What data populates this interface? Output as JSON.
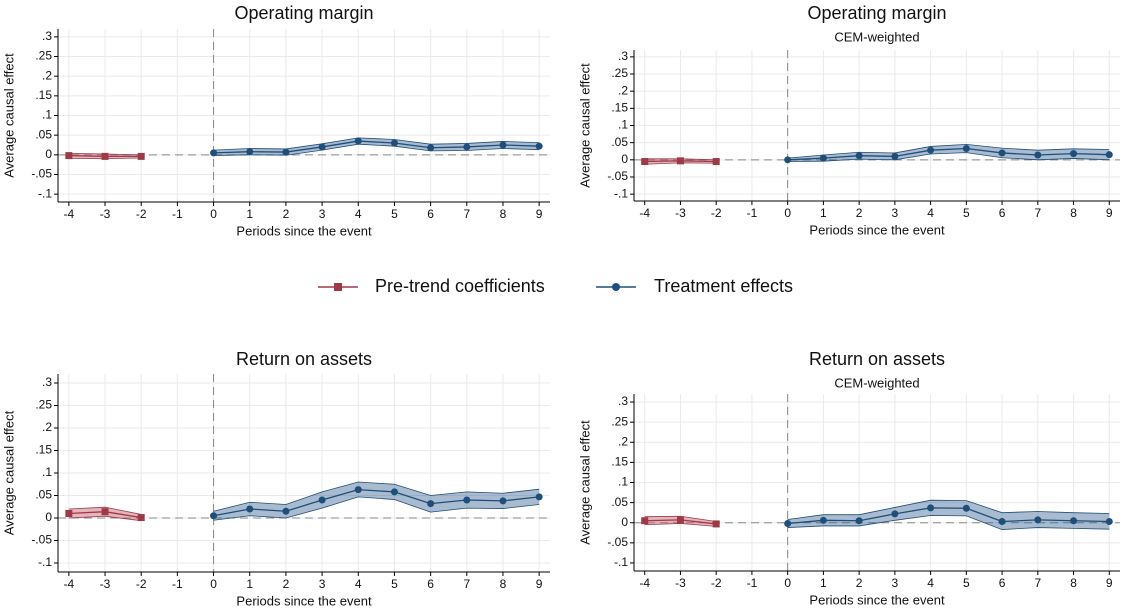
{
  "chart_data": [
    {
      "type": "line",
      "title": "Operating margin",
      "xlabel": "Periods since the event",
      "ylabel": "Average causal effect",
      "x": [
        -4,
        -3,
        -2,
        -1,
        0,
        1,
        2,
        3,
        4,
        5,
        6,
        7,
        8,
        9
      ],
      "xlim": [
        -4.3,
        9.3
      ],
      "xticks": [
        -4,
        -3,
        -2,
        -1,
        0,
        1,
        2,
        3,
        4,
        5,
        6,
        7,
        8,
        9
      ],
      "ylim": [
        -0.12,
        0.32
      ],
      "yticks": [
        {
          "value": -0.1,
          "label": "-.1"
        },
        {
          "value": -0.05,
          "label": "-.05"
        },
        0,
        {
          "value": 0.05,
          "label": ".05"
        },
        {
          "value": 0.1,
          "label": ".1"
        },
        {
          "value": 0.15,
          "label": ".15"
        },
        {
          "value": 0.2,
          "label": ".2"
        },
        {
          "value": 0.25,
          "label": ".25"
        },
        {
          "value": 0.3,
          "label": ".3"
        }
      ],
      "grid": true,
      "series": [
        {
          "name": "Pre-trend coefficients",
          "color": "#9e3a48",
          "band_color": "rgba(196,92,108,0.45)",
          "marker": "square",
          "values": [
            -0.002,
            -0.004,
            -0.004,
            null,
            null,
            null,
            null,
            null,
            null,
            null,
            null,
            null,
            null,
            null
          ],
          "lower": [
            -0.009,
            -0.01,
            -0.008,
            null,
            null,
            null,
            null,
            null,
            null,
            null,
            null,
            null,
            null,
            null
          ],
          "upper": [
            0.004,
            0.002,
            0.0,
            null,
            null,
            null,
            null,
            null,
            null,
            null,
            null,
            null,
            null,
            null
          ]
        },
        {
          "name": "Treatment effects",
          "color": "#1f4e79",
          "band_color": "rgba(40,86,138,0.4)",
          "marker": "circle",
          "values": [
            null,
            null,
            null,
            null,
            0.005,
            0.008,
            0.007,
            0.02,
            0.035,
            0.03,
            0.018,
            0.02,
            0.025,
            0.022
          ],
          "lower": [
            null,
            null,
            null,
            null,
            -0.002,
            0.0,
            -0.001,
            0.012,
            0.027,
            0.022,
            0.01,
            0.011,
            0.016,
            0.013
          ],
          "upper": [
            null,
            null,
            null,
            null,
            0.012,
            0.016,
            0.015,
            0.028,
            0.043,
            0.039,
            0.027,
            0.029,
            0.034,
            0.031
          ]
        }
      ]
    },
    {
      "type": "line",
      "title": "Operating margin",
      "subtitle": "CEM-weighted",
      "xlabel": "Periods since the event",
      "ylabel": "Average causal effect",
      "x": [
        -4,
        -3,
        -2,
        -1,
        0,
        1,
        2,
        3,
        4,
        5,
        6,
        7,
        8,
        9
      ],
      "xlim": [
        -4.3,
        9.3
      ],
      "xticks": [
        -4,
        -3,
        -2,
        -1,
        0,
        1,
        2,
        3,
        4,
        5,
        6,
        7,
        8,
        9
      ],
      "ylim": [
        -0.12,
        0.32
      ],
      "yticks": [
        {
          "value": -0.1,
          "label": "-.1"
        },
        {
          "value": -0.05,
          "label": "-.05"
        },
        0,
        {
          "value": 0.05,
          "label": ".05"
        },
        {
          "value": 0.1,
          "label": ".1"
        },
        {
          "value": 0.15,
          "label": ".15"
        },
        {
          "value": 0.2,
          "label": ".2"
        },
        {
          "value": 0.25,
          "label": ".25"
        },
        {
          "value": 0.3,
          "label": ".3"
        }
      ],
      "grid": true,
      "series": [
        {
          "name": "Pre-trend coefficients",
          "color": "#9e3a48",
          "band_color": "rgba(196,92,108,0.45)",
          "marker": "square",
          "values": [
            -0.005,
            -0.003,
            -0.005,
            null,
            null,
            null,
            null,
            null,
            null,
            null,
            null,
            null,
            null,
            null
          ],
          "lower": [
            -0.013,
            -0.009,
            -0.01,
            null,
            null,
            null,
            null,
            null,
            null,
            null,
            null,
            null,
            null,
            null
          ],
          "upper": [
            0.003,
            0.003,
            0.0,
            null,
            null,
            null,
            null,
            null,
            null,
            null,
            null,
            null,
            null,
            null
          ]
        },
        {
          "name": "Treatment effects",
          "color": "#1f4e79",
          "band_color": "rgba(40,86,138,0.4)",
          "marker": "circle",
          "values": [
            null,
            null,
            null,
            null,
            0,
            0.005,
            0.012,
            0.01,
            0.028,
            0.033,
            0.02,
            0.014,
            0.018,
            0.015
          ],
          "lower": [
            null,
            null,
            null,
            null,
            -0.005,
            -0.004,
            0.002,
            0.0,
            0.017,
            0.021,
            0.006,
            0.0,
            0.004,
            0.0
          ],
          "upper": [
            null,
            null,
            null,
            null,
            0.005,
            0.014,
            0.022,
            0.02,
            0.039,
            0.045,
            0.034,
            0.028,
            0.032,
            0.03
          ]
        }
      ]
    },
    {
      "type": "line",
      "title": "Return on assets",
      "xlabel": "Periods since the event",
      "ylabel": "Average causal effect",
      "x": [
        -4,
        -3,
        -2,
        -1,
        0,
        1,
        2,
        3,
        4,
        5,
        6,
        7,
        8,
        9
      ],
      "xlim": [
        -4.3,
        9.3
      ],
      "xticks": [
        -4,
        -3,
        -2,
        -1,
        0,
        1,
        2,
        3,
        4,
        5,
        6,
        7,
        8,
        9
      ],
      "ylim": [
        -0.12,
        0.32
      ],
      "yticks": [
        {
          "value": -0.1,
          "label": "-.1"
        },
        {
          "value": -0.05,
          "label": "-.05"
        },
        0,
        {
          "value": 0.05,
          "label": ".05"
        },
        {
          "value": 0.1,
          "label": ".1"
        },
        {
          "value": 0.15,
          "label": ".15"
        },
        {
          "value": 0.2,
          "label": ".2"
        },
        {
          "value": 0.25,
          "label": ".25"
        },
        {
          "value": 0.3,
          "label": ".3"
        }
      ],
      "grid": true,
      "series": [
        {
          "name": "Pre-trend coefficients",
          "color": "#9e3a48",
          "band_color": "rgba(196,92,108,0.45)",
          "marker": "square",
          "values": [
            0.01,
            0.014,
            0.001,
            null,
            null,
            null,
            null,
            null,
            null,
            null,
            null,
            null,
            null,
            null
          ],
          "lower": [
            0.0,
            0.004,
            -0.006,
            null,
            null,
            null,
            null,
            null,
            null,
            null,
            null,
            null,
            null,
            null
          ],
          "upper": [
            0.02,
            0.024,
            0.008,
            null,
            null,
            null,
            null,
            null,
            null,
            null,
            null,
            null,
            null,
            null
          ]
        },
        {
          "name": "Treatment effects",
          "color": "#1f4e79",
          "band_color": "rgba(40,86,138,0.4)",
          "marker": "circle",
          "values": [
            null,
            null,
            null,
            null,
            0.005,
            0.02,
            0.015,
            0.04,
            0.063,
            0.058,
            0.032,
            0.04,
            0.038,
            0.047
          ],
          "lower": [
            null,
            null,
            null,
            null,
            -0.005,
            0.005,
            0.0,
            0.022,
            0.047,
            0.041,
            0.013,
            0.022,
            0.021,
            0.03
          ],
          "upper": [
            null,
            null,
            null,
            null,
            0.015,
            0.035,
            0.03,
            0.058,
            0.08,
            0.075,
            0.05,
            0.058,
            0.055,
            0.064
          ]
        }
      ]
    },
    {
      "type": "line",
      "title": "Return on assets",
      "subtitle": "CEM-weighted",
      "xlabel": "Periods since the event",
      "ylabel": "Average causal effect",
      "x": [
        -4,
        -3,
        -2,
        -1,
        0,
        1,
        2,
        3,
        4,
        5,
        6,
        7,
        8,
        9
      ],
      "xlim": [
        -4.3,
        9.3
      ],
      "xticks": [
        -4,
        -3,
        -2,
        -1,
        0,
        1,
        2,
        3,
        4,
        5,
        6,
        7,
        8,
        9
      ],
      "ylim": [
        -0.12,
        0.32
      ],
      "yticks": [
        {
          "value": -0.1,
          "label": "-.1"
        },
        {
          "value": -0.05,
          "label": "-.05"
        },
        0,
        {
          "value": 0.05,
          "label": ".05"
        },
        {
          "value": 0.1,
          "label": ".1"
        },
        {
          "value": 0.15,
          "label": ".15"
        },
        {
          "value": 0.2,
          "label": ".2"
        },
        {
          "value": 0.25,
          "label": ".25"
        },
        {
          "value": 0.3,
          "label": ".3"
        }
      ],
      "grid": true,
      "series": [
        {
          "name": "Pre-trend coefficients",
          "color": "#9e3a48",
          "band_color": "rgba(196,92,108,0.45)",
          "marker": "square",
          "values": [
            0.005,
            0.007,
            -0.003,
            null,
            null,
            null,
            null,
            null,
            null,
            null,
            null,
            null,
            null,
            null
          ],
          "lower": [
            -0.005,
            -0.002,
            -0.009,
            null,
            null,
            null,
            null,
            null,
            null,
            null,
            null,
            null,
            null,
            null
          ],
          "upper": [
            0.015,
            0.016,
            0.003,
            null,
            null,
            null,
            null,
            null,
            null,
            null,
            null,
            null,
            null,
            null
          ]
        },
        {
          "name": "Treatment effects",
          "color": "#1f4e79",
          "band_color": "rgba(40,86,138,0.4)",
          "marker": "circle",
          "values": [
            null,
            null,
            null,
            null,
            -0.002,
            0.006,
            0.005,
            0.022,
            0.037,
            0.036,
            0.003,
            0.007,
            0.005,
            0.003
          ],
          "lower": [
            null,
            null,
            null,
            null,
            -0.012,
            -0.008,
            -0.008,
            0.006,
            0.018,
            0.017,
            -0.017,
            -0.012,
            -0.014,
            -0.016
          ],
          "upper": [
            null,
            null,
            null,
            null,
            0.008,
            0.02,
            0.02,
            0.038,
            0.056,
            0.055,
            0.025,
            0.028,
            0.025,
            0.023
          ]
        }
      ]
    }
  ]
}
